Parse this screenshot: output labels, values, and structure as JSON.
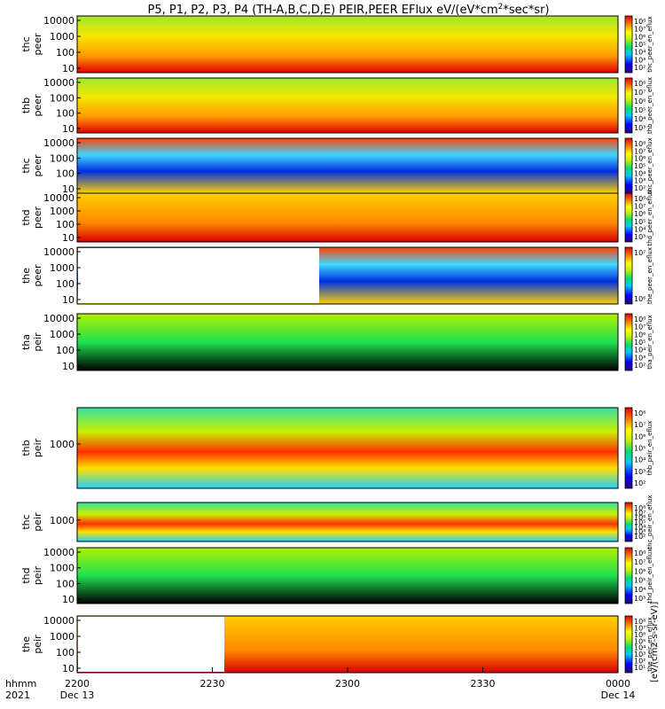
{
  "title": "P5, P1, P2, P3, P4 (TH-A,B,C,D,E) PEIR,PEER EFlux eV/(eV*cm",
  "title_sup": "2",
  "title_tail": "*sec*sr)",
  "chart_data": {
    "type": "heatmap",
    "x_ticks": [
      {
        "time": "2200",
        "date": "Dec 13"
      },
      {
        "time": "2230",
        "date": ""
      },
      {
        "time": "2300",
        "date": ""
      },
      {
        "time": "2330",
        "date": ""
      },
      {
        "time": "0000",
        "date": "Dec 14"
      }
    ],
    "x_row_labels": {
      "line1": "hhmm",
      "line2": "2021"
    },
    "colorbar_caption": "[eV/(cm2-s-sr-eV)]",
    "panels": [
      {
        "ylabel": [
          "thc",
          "peer"
        ],
        "yticks": [
          "10000",
          "1000",
          "100",
          "10"
        ],
        "cbar_ticks": [
          "10⁸",
          "10⁷",
          "10⁶",
          "10⁵",
          "10⁴",
          "10³",
          "10²"
        ],
        "cbar_label": "thc_peer_en_eflux"
      },
      {
        "ylabel": [
          "thb",
          "peer"
        ],
        "yticks": [
          "10000",
          "1000",
          "100",
          "10"
        ],
        "cbar_ticks": [
          "10⁸",
          "10⁷",
          "10⁶",
          "10⁵",
          "10⁴",
          "10³"
        ],
        "cbar_label": "thb_peer_en_eflux"
      },
      {
        "ylabel": [
          "thc",
          "peer"
        ],
        "yticks": [
          "10000",
          "1000",
          "100",
          "10"
        ],
        "cbar_ticks": [
          "10⁸",
          "10⁷",
          "10⁶",
          "10⁵",
          "10⁴",
          "10³",
          "10²"
        ],
        "cbar_label": "thc_peer_en_eflux"
      },
      {
        "ylabel": [
          "thd",
          "peer"
        ],
        "yticks": [
          "10000",
          "1000",
          "100",
          "10"
        ],
        "cbar_ticks": [
          "10⁸",
          "10⁷",
          "10⁶",
          "10⁵",
          "10⁴",
          "10³"
        ],
        "cbar_label": "thd_peer_en_eflux"
      },
      {
        "ylabel": [
          "the",
          "peer"
        ],
        "yticks": [
          "10000",
          "1000",
          "100",
          "10"
        ],
        "cbar_ticks": [
          "10⁷",
          "10⁶"
        ],
        "cbar_label": "the_peer_en_eflux"
      },
      {
        "ylabel": [
          "tha",
          "peir"
        ],
        "yticks": [
          "10000",
          "1000",
          "100",
          "10"
        ],
        "cbar_ticks": [
          "10⁸",
          "10⁷",
          "10⁶",
          "10⁵",
          "10⁴",
          "10³",
          "10²"
        ],
        "cbar_label": "tha_peir_en_eflux"
      },
      {
        "ylabel": [
          "thb",
          "peir"
        ],
        "yticks": [
          "1000"
        ],
        "cbar_ticks": [
          "10⁸",
          "10⁷",
          "10⁶",
          "10⁵",
          "10⁴",
          "10³",
          "10²"
        ],
        "cbar_label": "thb_peir_en_eflux"
      },
      {
        "ylabel": [
          "thc",
          "peir"
        ],
        "yticks": [
          "1000"
        ],
        "cbar_ticks": [
          "10⁸",
          "10⁷",
          "10⁶",
          "10⁵",
          "10⁴",
          "10³",
          "10²"
        ],
        "cbar_label": "thc_peir_en_eflux"
      },
      {
        "ylabel": [
          "thd",
          "peir"
        ],
        "yticks": [
          "10000",
          "1000",
          "100",
          "10"
        ],
        "cbar_ticks": [
          "10⁸",
          "10⁷",
          "10⁶",
          "10⁵",
          "10⁴",
          "10³"
        ],
        "cbar_label": "thd_peir_en_eflux"
      },
      {
        "ylabel": [
          "the",
          "peir"
        ],
        "yticks": [
          "10000",
          "1000",
          "100",
          "10"
        ],
        "cbar_ticks": [
          "10⁸",
          "10⁷",
          "10⁶",
          "10⁵",
          "10⁴",
          "10³",
          "10²",
          "10¹"
        ],
        "cbar_label": "the_peir_en_eflux"
      }
    ]
  }
}
